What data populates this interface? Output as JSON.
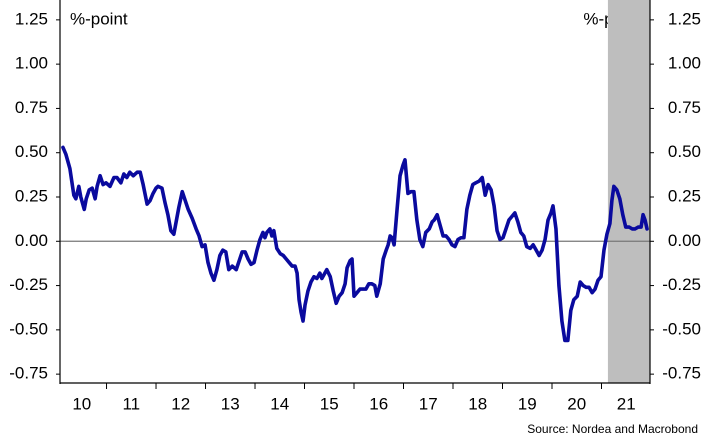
{
  "chart_data": {
    "type": "line",
    "y_label": "%-point",
    "y2_label": "%-point",
    "source": "Source: Nordea and Macrobond",
    "x": [
      10.12,
      10.18,
      10.26,
      10.34,
      10.38,
      10.44,
      10.48,
      10.55,
      10.59,
      10.65,
      10.71,
      10.77,
      10.81,
      10.87,
      10.93,
      10.99,
      11.07,
      11.15,
      11.21,
      11.29,
      11.35,
      11.41,
      11.47,
      11.54,
      11.62,
      11.68,
      11.74,
      11.82,
      11.88,
      11.94,
      12.0,
      12.04,
      12.12,
      12.18,
      12.24,
      12.3,
      12.36,
      12.42,
      12.46,
      12.53,
      12.59,
      12.65,
      12.73,
      12.81,
      12.87,
      12.93,
      12.99,
      13.05,
      13.11,
      13.17,
      13.23,
      13.29,
      13.35,
      13.41,
      13.47,
      13.54,
      13.62,
      13.68,
      13.74,
      13.8,
      13.86,
      13.92,
      13.98,
      14.04,
      14.1,
      14.16,
      14.2,
      14.24,
      14.3,
      14.34,
      14.38,
      14.44,
      14.51,
      14.57,
      14.63,
      14.69,
      14.75,
      14.81,
      14.85,
      14.89,
      14.93,
      14.97,
      15.01,
      15.07,
      15.13,
      15.19,
      15.25,
      15.31,
      15.35,
      15.39,
      15.45,
      15.52,
      15.58,
      15.64,
      15.7,
      15.76,
      15.82,
      15.86,
      15.92,
      15.96,
      16.0,
      16.06,
      16.12,
      16.18,
      16.24,
      16.3,
      16.36,
      16.42,
      16.46,
      16.53,
      16.59,
      16.65,
      16.69,
      16.73,
      16.77,
      16.81,
      16.87,
      16.93,
      16.99,
      17.03,
      17.09,
      17.15,
      17.21,
      17.27,
      17.33,
      17.39,
      17.45,
      17.52,
      17.58,
      17.62,
      17.68,
      17.74,
      17.8,
      17.86,
      17.92,
      17.98,
      18.04,
      18.1,
      18.16,
      18.22,
      18.28,
      18.34,
      18.4,
      18.46,
      18.53,
      18.59,
      18.65,
      18.71,
      18.77,
      18.83,
      18.89,
      18.95,
      19.01,
      19.07,
      19.13,
      19.19,
      19.25,
      19.31,
      19.37,
      19.43,
      19.49,
      19.56,
      19.62,
      19.68,
      19.74,
      19.8,
      19.86,
      19.92,
      19.98,
      20.02,
      20.08,
      20.14,
      20.2,
      20.26,
      20.32,
      20.38,
      20.44,
      20.51,
      20.57,
      20.63,
      20.69,
      20.75,
      20.81,
      20.87,
      20.93,
      20.99,
      21.05,
      21.11,
      21.17,
      21.21,
      21.25,
      21.31,
      21.37,
      21.43,
      21.49,
      21.56,
      21.62,
      21.68,
      21.74,
      21.8,
      21.84,
      21.88,
      21.92
    ],
    "series": [
      {
        "color": "#0a0a9e",
        "values": [
          0.53,
          0.49,
          0.41,
          0.26,
          0.24,
          0.31,
          0.25,
          0.18,
          0.24,
          0.29,
          0.3,
          0.24,
          0.31,
          0.37,
          0.32,
          0.33,
          0.31,
          0.36,
          0.36,
          0.33,
          0.38,
          0.36,
          0.39,
          0.37,
          0.39,
          0.39,
          0.32,
          0.21,
          0.23,
          0.27,
          0.3,
          0.31,
          0.3,
          0.22,
          0.15,
          0.06,
          0.04,
          0.13,
          0.19,
          0.28,
          0.23,
          0.18,
          0.13,
          0.07,
          0.03,
          -0.03,
          -0.02,
          -0.12,
          -0.18,
          -0.22,
          -0.16,
          -0.08,
          -0.05,
          -0.06,
          -0.16,
          -0.14,
          -0.16,
          -0.11,
          -0.06,
          -0.06,
          -0.1,
          -0.13,
          -0.12,
          -0.05,
          0.01,
          0.05,
          0.02,
          0.05,
          0.07,
          0.03,
          0.06,
          -0.04,
          -0.07,
          -0.08,
          -0.1,
          -0.12,
          -0.14,
          -0.14,
          -0.18,
          -0.33,
          -0.4,
          -0.45,
          -0.36,
          -0.28,
          -0.23,
          -0.2,
          -0.21,
          -0.18,
          -0.21,
          -0.19,
          -0.16,
          -0.2,
          -0.28,
          -0.35,
          -0.31,
          -0.29,
          -0.24,
          -0.15,
          -0.11,
          -0.1,
          -0.31,
          -0.29,
          -0.27,
          -0.27,
          -0.27,
          -0.24,
          -0.24,
          -0.25,
          -0.31,
          -0.24,
          -0.1,
          -0.05,
          -0.02,
          0.03,
          0.02,
          -0.02,
          0.18,
          0.37,
          0.43,
          0.46,
          0.27,
          0.28,
          0.28,
          0.12,
          0.01,
          -0.03,
          0.05,
          0.07,
          0.11,
          0.12,
          0.15,
          0.09,
          0.03,
          0.03,
          0.01,
          -0.02,
          -0.03,
          0.01,
          0.02,
          0.02,
          0.18,
          0.26,
          0.32,
          0.33,
          0.34,
          0.36,
          0.26,
          0.32,
          0.29,
          0.2,
          0.06,
          0.01,
          0.02,
          0.07,
          0.12,
          0.14,
          0.16,
          0.11,
          0.05,
          0.03,
          -0.03,
          -0.04,
          -0.02,
          -0.05,
          -0.08,
          -0.05,
          0.01,
          0.12,
          0.16,
          0.2,
          0.07,
          -0.25,
          -0.45,
          -0.56,
          -0.56,
          -0.39,
          -0.33,
          -0.31,
          -0.23,
          -0.25,
          -0.26,
          -0.26,
          -0.29,
          -0.27,
          -0.22,
          -0.2,
          -0.05,
          0.04,
          0.1,
          0.23,
          0.31,
          0.29,
          0.24,
          0.15,
          0.08,
          0.08,
          0.07,
          0.07,
          0.08,
          0.08,
          0.15,
          0.12,
          0.07
        ]
      }
    ],
    "xlim": [
      10.06,
      21.98
    ],
    "xticks": [
      {
        "value": 10.5,
        "label": "10"
      },
      {
        "value": 11.5,
        "label": "11"
      },
      {
        "value": 12.5,
        "label": "12"
      },
      {
        "value": 13.5,
        "label": "13"
      },
      {
        "value": 14.5,
        "label": "14"
      },
      {
        "value": 15.5,
        "label": "15"
      },
      {
        "value": 16.5,
        "label": "16"
      },
      {
        "value": 17.5,
        "label": "17"
      },
      {
        "value": 18.5,
        "label": "18"
      },
      {
        "value": 19.5,
        "label": "19"
      },
      {
        "value": 20.5,
        "label": "20"
      },
      {
        "value": 21.5,
        "label": "21"
      }
    ],
    "xticks_minor": [
      11,
      12,
      13,
      14,
      15,
      16,
      17,
      18,
      19,
      20,
      21
    ],
    "ylim": [
      -0.8,
      1.3
    ],
    "yticks": [
      1.25,
      {
        "value": 1,
        "label": "1.00"
      },
      0.75,
      {
        "value": 0.5,
        "label": "0.50"
      },
      0.25,
      {
        "value": 0,
        "label": "0.00"
      },
      -0.25,
      {
        "value": -0.5,
        "label": "-0.50"
      },
      -0.75
    ],
    "y2lim": [
      -0.8,
      1.3
    ],
    "y2ticks": [
      1.25,
      {
        "value": 1,
        "label": "1.00"
      },
      0.75,
      {
        "value": 0.5,
        "label": "0.50"
      },
      0.25,
      {
        "value": 0,
        "label": "0.00"
      },
      -0.25,
      {
        "value": -0.5,
        "label": "-0.50"
      },
      -0.75
    ],
    "shaded_region": {
      "x": [
        21.13,
        21.98
      ],
      "color": "#bebebe"
    },
    "zero_line": true
  }
}
